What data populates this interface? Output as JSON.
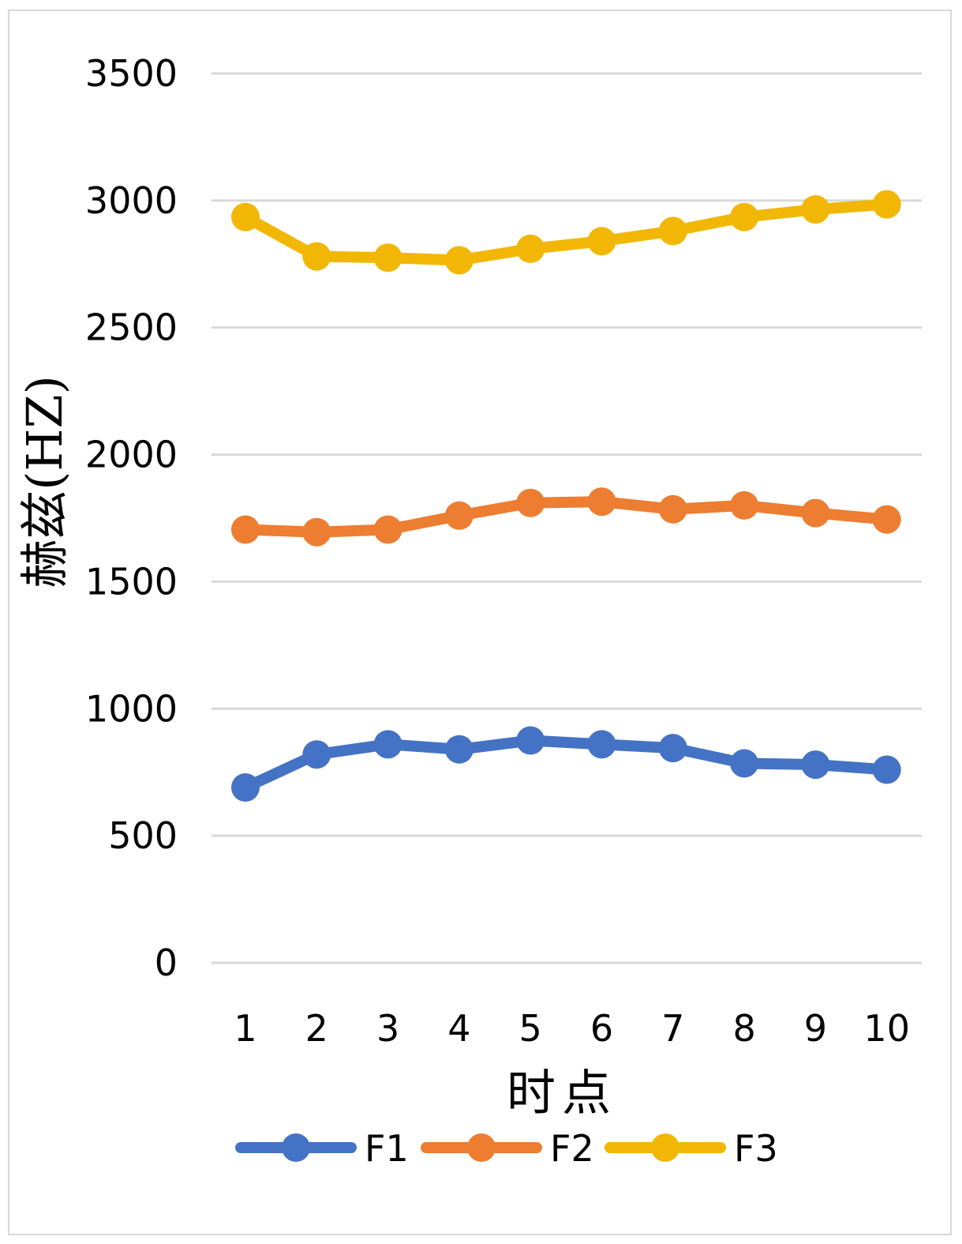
{
  "chart_data": {
    "type": "line",
    "title": "",
    "xlabel": "时点",
    "ylabel": "赫兹(HZ)",
    "x": [
      "1",
      "2",
      "3",
      "4",
      "5",
      "6",
      "7",
      "8",
      "9",
      "10"
    ],
    "ylim": [
      0,
      3500
    ],
    "yticks": [
      "0",
      "500",
      "1000",
      "1500",
      "2000",
      "2500",
      "3000",
      "3500"
    ],
    "grid": true,
    "legend_position": "bottom",
    "series": [
      {
        "name": "F1",
        "color": "#4472C4",
        "values": [
          690,
          820,
          860,
          840,
          875,
          860,
          845,
          785,
          780,
          760
        ]
      },
      {
        "name": "F2",
        "color": "#ED7D31",
        "values": [
          1705,
          1695,
          1705,
          1760,
          1810,
          1815,
          1785,
          1800,
          1770,
          1745
        ]
      },
      {
        "name": "F3",
        "color": "#F2B705",
        "values": [
          2935,
          2780,
          2775,
          2765,
          2810,
          2840,
          2880,
          2935,
          2965,
          2985
        ]
      }
    ]
  }
}
